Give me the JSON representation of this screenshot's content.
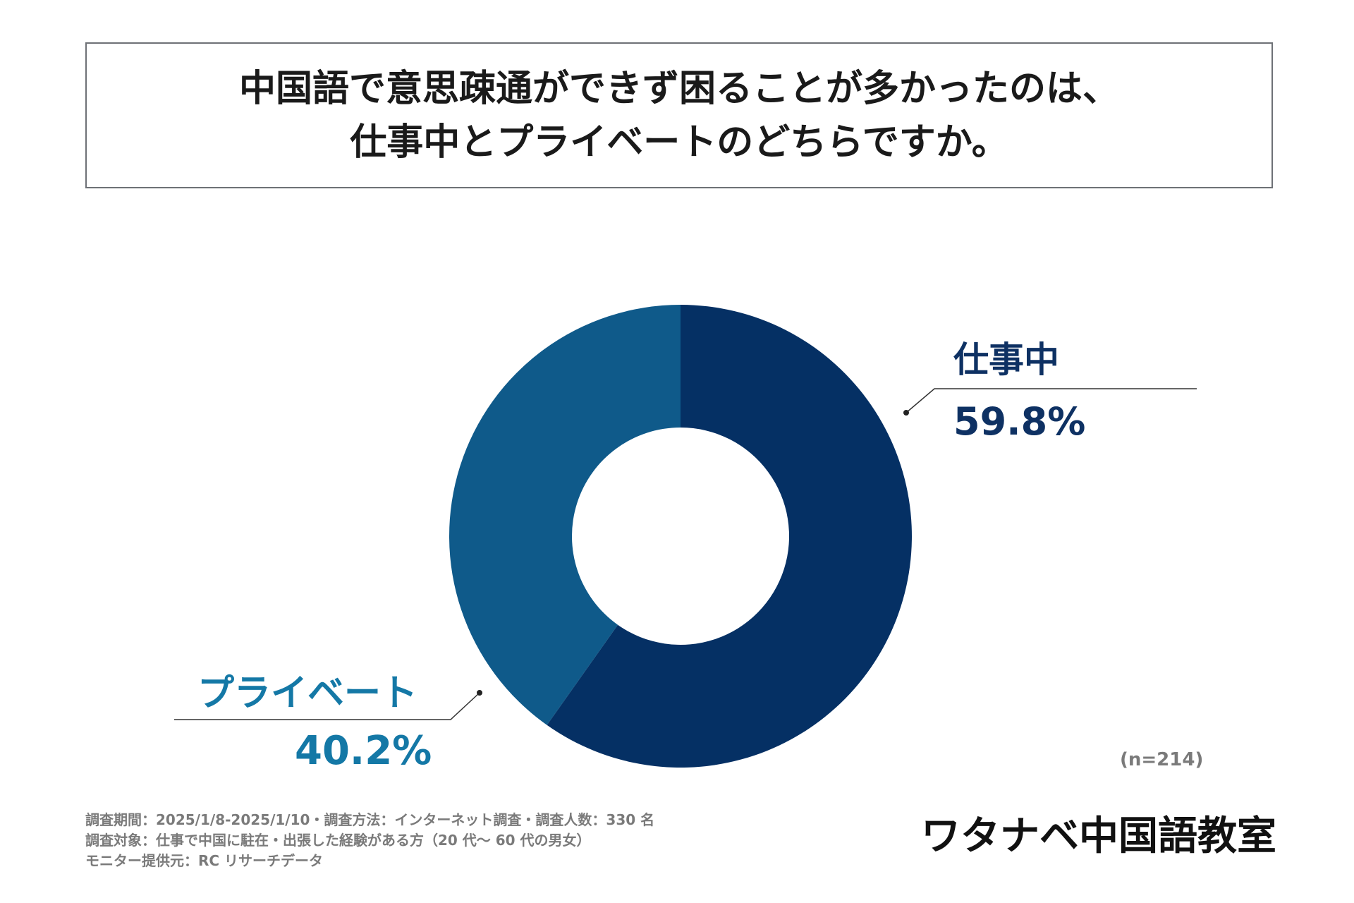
{
  "title": {
    "line1": "中国語で意思疎通ができず困ることが多かったのは、",
    "line2": "仕事中とプライベートのどちらですか。"
  },
  "chart_data": {
    "type": "pie",
    "categories": [
      "仕事中",
      "プライベート"
    ],
    "values": [
      59.8,
      40.2
    ],
    "value_labels": [
      "59.8%",
      "40.2%"
    ],
    "colors": [
      "#053064",
      "#0f5a8a"
    ],
    "label_colors": [
      "#0e3163",
      "#1478a6"
    ],
    "legend": "none"
  },
  "sample_size": "(n=214)",
  "footnotes": [
    "調査期間：2025/1/8-2025/1/10・調査方法：インターネット調査・調査人数：330 名",
    "調査対象：仕事で中国に駐在・出張した経験がある方（20 代～ 60 代の男女）",
    "モニター提供元：RC リサーチデータ"
  ],
  "brand": "ワタナベ中国語教室"
}
